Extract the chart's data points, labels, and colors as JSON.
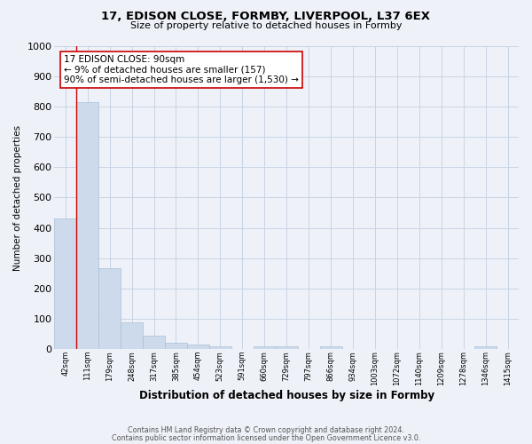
{
  "title": "17, EDISON CLOSE, FORMBY, LIVERPOOL, L37 6EX",
  "subtitle": "Size of property relative to detached houses in Formby",
  "xlabel": "Distribution of detached houses by size in Formby",
  "ylabel": "Number of detached properties",
  "bar_labels": [
    "42sqm",
    "111sqm",
    "179sqm",
    "248sqm",
    "317sqm",
    "385sqm",
    "454sqm",
    "523sqm",
    "591sqm",
    "660sqm",
    "729sqm",
    "797sqm",
    "866sqm",
    "934sqm",
    "1003sqm",
    "1072sqm",
    "1140sqm",
    "1209sqm",
    "1278sqm",
    "1346sqm",
    "1415sqm"
  ],
  "bar_values": [
    432,
    815,
    268,
    90,
    46,
    22,
    15,
    10,
    0,
    11,
    10,
    0,
    10,
    0,
    0,
    0,
    0,
    0,
    0,
    10,
    0
  ],
  "bar_color": "#ccdaeb",
  "bar_edge_color": "#aac0d8",
  "grid_color": "#c8d4e4",
  "background_color": "#eef2f8",
  "property_line_color": "#cc0000",
  "annotation_text": "17 EDISON CLOSE: 90sqm\n← 9% of detached houses are smaller (157)\n90% of semi-detached houses are larger (1,530) →",
  "annotation_box_color": "#ffffff",
  "annotation_box_edge": "#cc0000",
  "ylim": [
    0,
    1000
  ],
  "yticks": [
    0,
    100,
    200,
    300,
    400,
    500,
    600,
    700,
    800,
    900,
    1000
  ],
  "footer1": "Contains HM Land Registry data © Crown copyright and database right 2024.",
  "footer2": "Contains public sector information licensed under the Open Government Licence v3.0."
}
